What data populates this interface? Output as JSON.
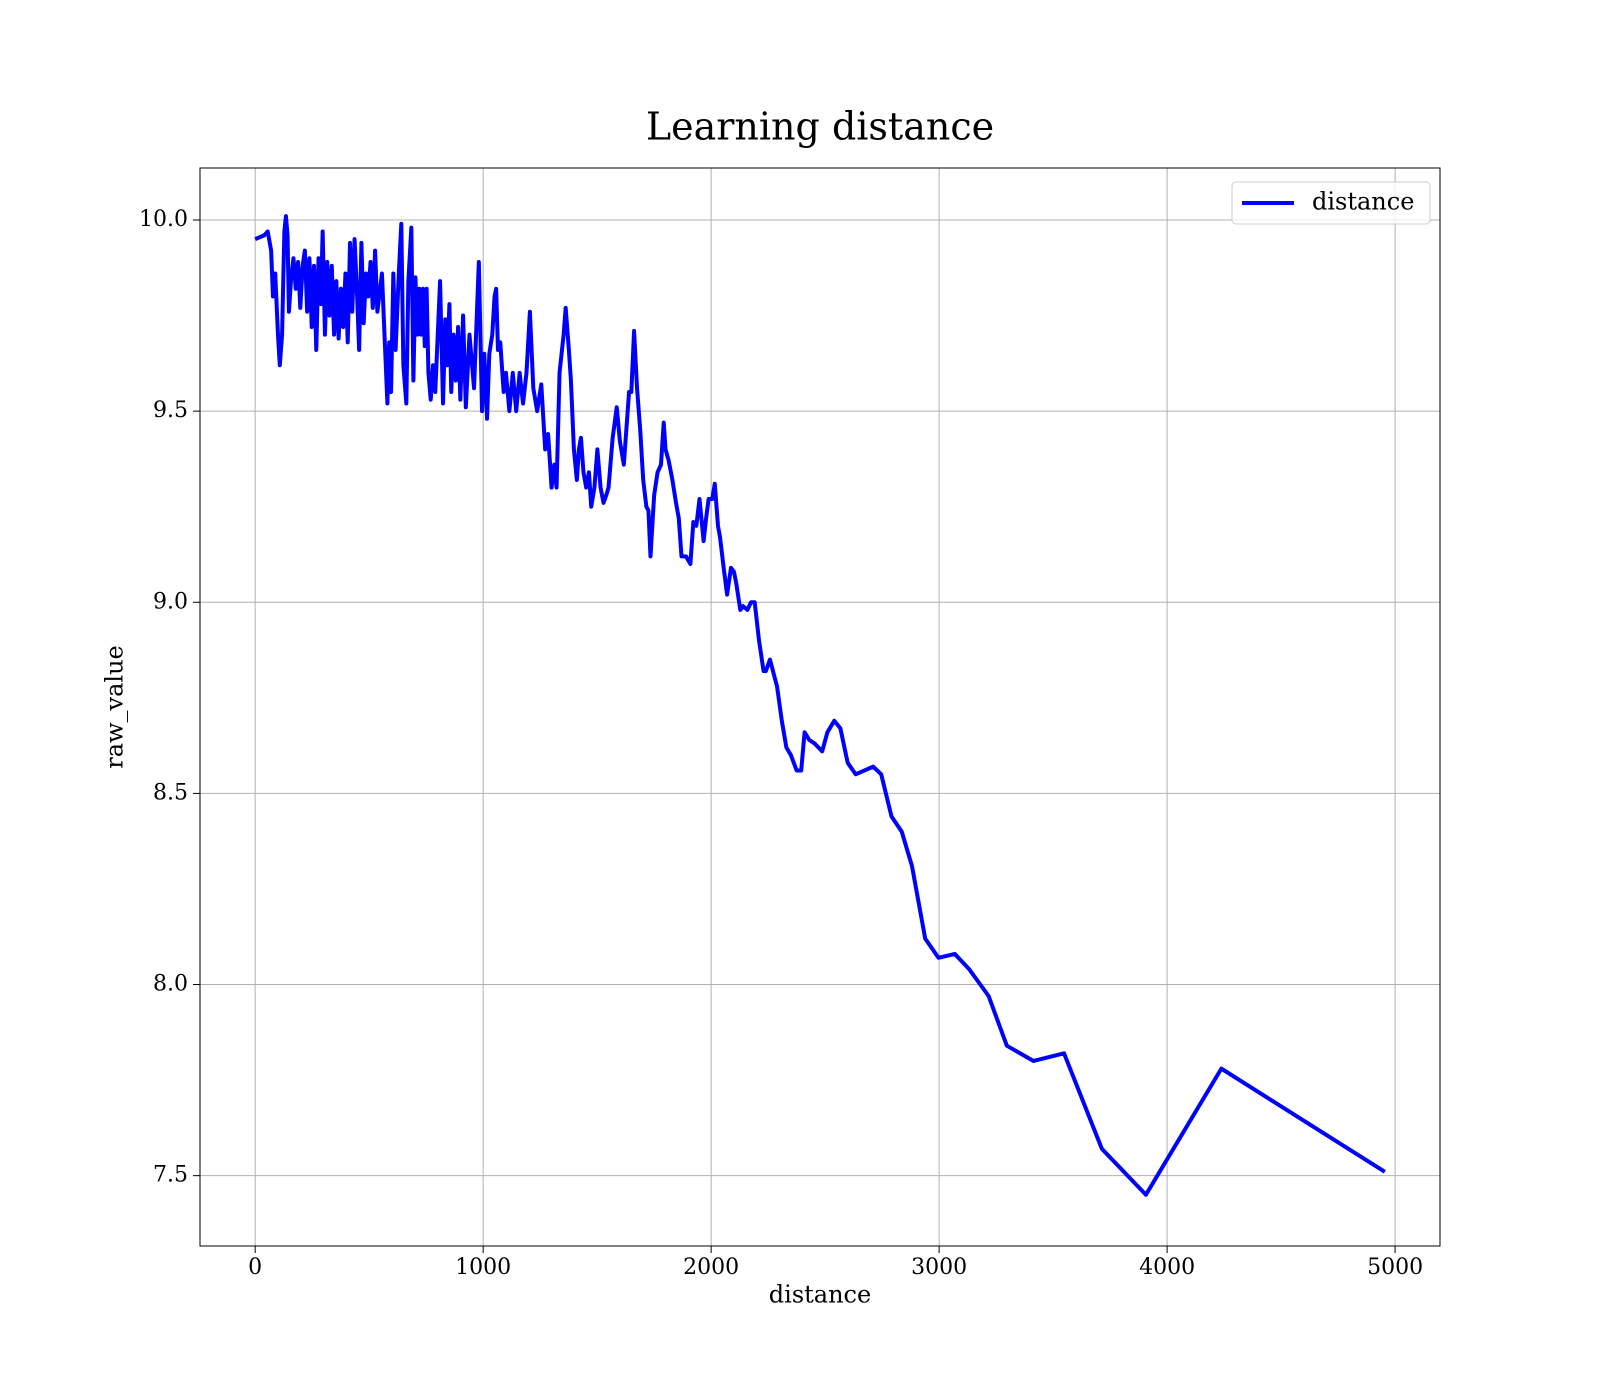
{
  "chart_data": {
    "type": "line",
    "title": "Learning distance",
    "x_label": "distance",
    "y_label": "raw_value",
    "x": [
      0,
      40,
      55,
      70,
      78,
      88,
      100,
      108,
      118,
      128,
      135,
      142,
      148,
      158,
      168,
      178,
      188,
      198,
      208,
      218,
      228,
      238,
      248,
      258,
      268,
      278,
      288,
      296,
      306,
      316,
      326,
      336,
      346,
      356,
      366,
      376,
      386,
      396,
      406,
      416,
      426,
      436,
      446,
      456,
      466,
      476,
      486,
      496,
      506,
      516,
      526,
      536,
      556,
      580,
      588,
      596,
      606,
      616,
      630,
      641,
      650,
      663,
      672,
      685,
      694,
      703,
      712,
      720,
      728,
      736,
      744,
      752,
      760,
      770,
      780,
      790,
      811,
      824,
      834,
      842,
      852,
      860,
      870,
      880,
      890,
      900,
      912,
      924,
      940,
      960,
      981,
      995,
      1005,
      1017,
      1027,
      1040,
      1050,
      1057,
      1065,
      1075,
      1090,
      1100,
      1115,
      1130,
      1145,
      1160,
      1175,
      1190,
      1205,
      1220,
      1237,
      1255,
      1272,
      1285,
      1300,
      1312,
      1322,
      1335,
      1353,
      1362,
      1376,
      1385,
      1398,
      1411,
      1420,
      1429,
      1440,
      1452,
      1464,
      1474,
      1488,
      1501,
      1515,
      1528,
      1540,
      1550,
      1568,
      1586,
      1600,
      1617,
      1640,
      1650,
      1662,
      1675,
      1689,
      1702,
      1716,
      1725,
      1734,
      1750,
      1765,
      1780,
      1792,
      1800,
      1814,
      1830,
      1846,
      1858,
      1870,
      1890,
      1909,
      1922,
      1935,
      1949,
      1967,
      1978,
      1989,
      2005,
      2016,
      2030,
      2039,
      2055,
      2070,
      2087,
      2100,
      2110,
      2128,
      2140,
      2159,
      2175,
      2191,
      2210,
      2230,
      2240,
      2258,
      2289,
      2310,
      2330,
      2350,
      2375,
      2395,
      2410,
      2430,
      2455,
      2487,
      2510,
      2540,
      2567,
      2599,
      2634,
      2711,
      2746,
      2791,
      2836,
      2881,
      2939,
      2997,
      3069,
      3132,
      3217,
      3297,
      3414,
      3548,
      3714,
      3907,
      4238,
      4955
    ],
    "series": [
      {
        "name": "distance",
        "color": "#0000ff",
        "values": [
          9.95,
          9.96,
          9.97,
          9.92,
          9.8,
          9.86,
          9.7,
          9.62,
          9.7,
          9.97,
          10.01,
          9.96,
          9.76,
          9.85,
          9.9,
          9.82,
          9.89,
          9.77,
          9.88,
          9.92,
          9.76,
          9.9,
          9.72,
          9.88,
          9.66,
          9.9,
          9.78,
          9.97,
          9.7,
          9.89,
          9.75,
          9.88,
          9.7,
          9.84,
          9.69,
          9.82,
          9.72,
          9.86,
          9.68,
          9.94,
          9.76,
          9.95,
          9.82,
          9.66,
          9.94,
          9.73,
          9.86,
          9.8,
          9.89,
          9.77,
          9.92,
          9.76,
          9.86,
          9.52,
          9.68,
          9.55,
          9.86,
          9.66,
          9.86,
          9.99,
          9.62,
          9.52,
          9.84,
          9.98,
          9.58,
          9.85,
          9.7,
          9.82,
          9.7,
          9.82,
          9.67,
          9.82,
          9.6,
          9.53,
          9.62,
          9.55,
          9.84,
          9.52,
          9.74,
          9.62,
          9.78,
          9.55,
          9.7,
          9.58,
          9.72,
          9.53,
          9.75,
          9.51,
          9.7,
          9.56,
          9.89,
          9.5,
          9.65,
          9.48,
          9.65,
          9.7,
          9.8,
          9.82,
          9.66,
          9.68,
          9.55,
          9.6,
          9.5,
          9.6,
          9.5,
          9.6,
          9.52,
          9.6,
          9.76,
          9.56,
          9.5,
          9.57,
          9.4,
          9.44,
          9.3,
          9.36,
          9.3,
          9.6,
          9.7,
          9.77,
          9.66,
          9.58,
          9.4,
          9.32,
          9.4,
          9.43,
          9.34,
          9.3,
          9.34,
          9.25,
          9.3,
          9.4,
          9.3,
          9.26,
          9.28,
          9.3,
          9.43,
          9.51,
          9.42,
          9.36,
          9.55,
          9.55,
          9.71,
          9.56,
          9.45,
          9.32,
          9.25,
          9.24,
          9.12,
          9.28,
          9.34,
          9.36,
          9.47,
          9.4,
          9.37,
          9.32,
          9.26,
          9.22,
          9.12,
          9.12,
          9.1,
          9.21,
          9.2,
          9.27,
          9.16,
          9.22,
          9.27,
          9.27,
          9.31,
          9.2,
          9.17,
          9.09,
          9.02,
          9.09,
          9.08,
          9.05,
          8.98,
          8.99,
          8.98,
          9.0,
          9.0,
          8.9,
          8.82,
          8.82,
          8.85,
          8.78,
          8.69,
          8.62,
          8.6,
          8.56,
          8.56,
          8.66,
          8.64,
          8.63,
          8.61,
          8.66,
          8.69,
          8.67,
          8.58,
          8.55,
          8.57,
          8.55,
          8.44,
          8.4,
          8.31,
          8.12,
          8.07,
          8.08,
          8.04,
          7.97,
          7.84,
          7.8,
          7.82,
          7.57,
          7.45,
          7.78,
          7.51
        ]
      }
    ],
    "xlim": [
      -242,
      5197
    ],
    "ylim": [
      7.316,
      10.136
    ],
    "xticks": [
      0,
      1000,
      2000,
      3000,
      4000,
      5000
    ],
    "yticks": [
      7.5,
      {
        "value": 8,
        "label": "8.0"
      },
      8.5,
      {
        "value": 9,
        "label": "9.0"
      },
      9.5,
      {
        "value": 10,
        "label": "10.0"
      }
    ],
    "grid": true,
    "legend": "upper-right"
  }
}
